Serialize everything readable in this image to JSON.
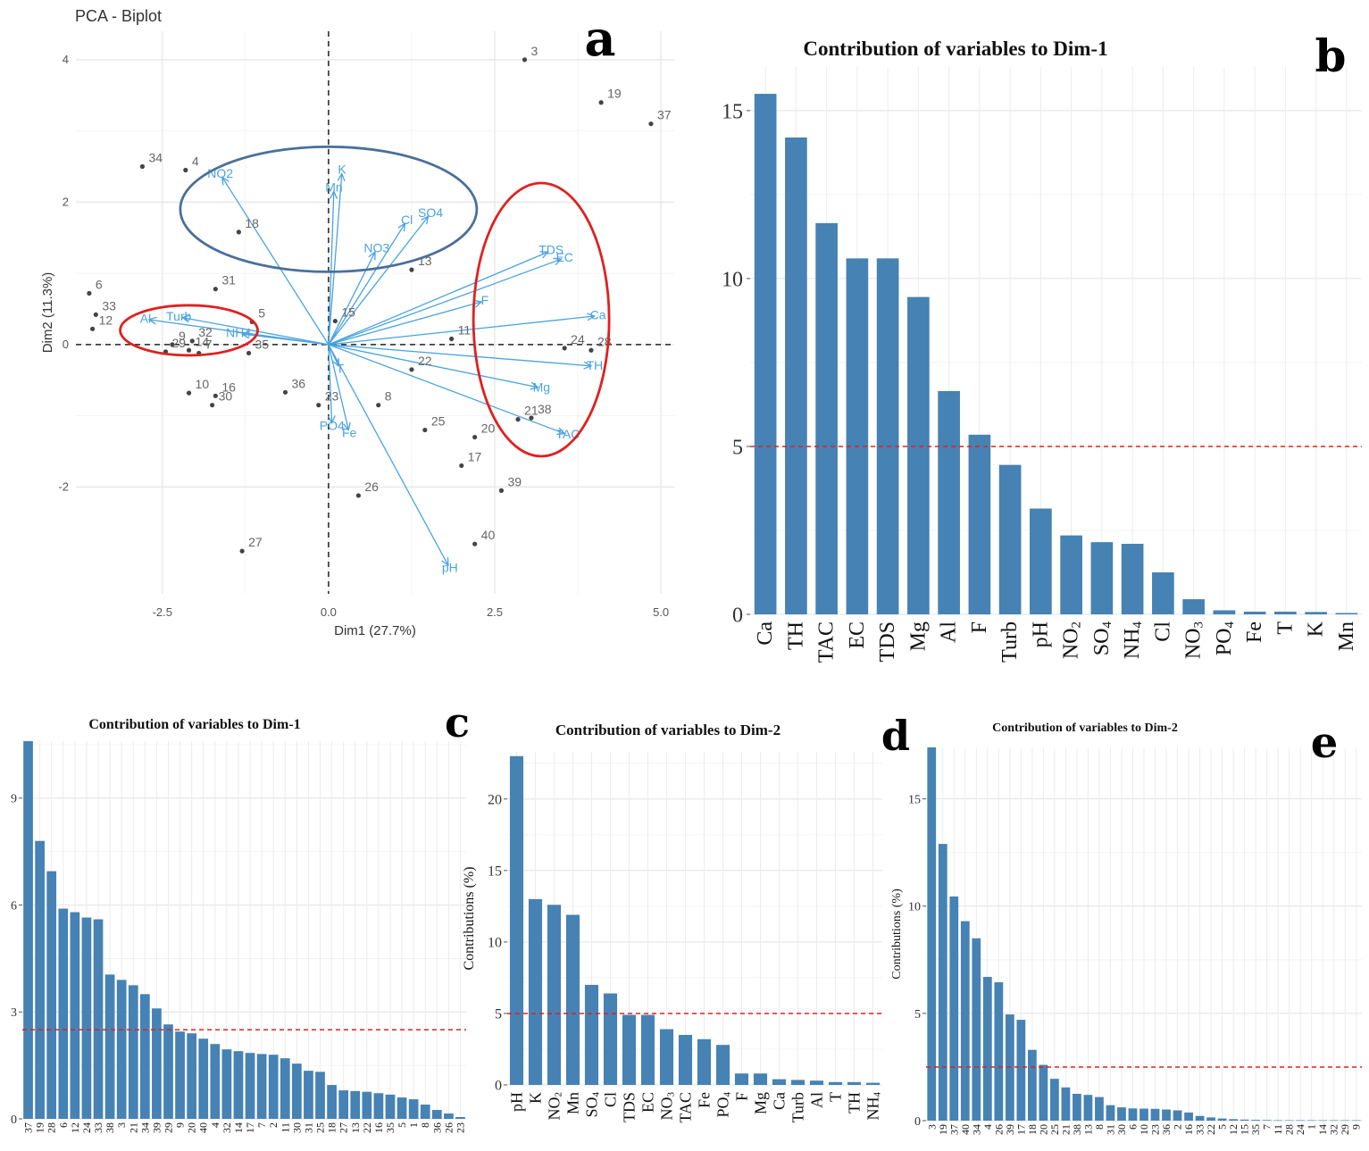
{
  "chart_data": [
    {
      "id": "a",
      "type": "scatter",
      "panel_letter": "a",
      "title": "PCA - Biplot",
      "xlabel": "Dim1 (27.7%)",
      "ylabel": "Dim2 (11.3%)",
      "xlim": [
        -3.8,
        5.2
      ],
      "ylim": [
        -3.5,
        4.4
      ],
      "xticks": [
        -2.5,
        0.0,
        2.5,
        5.0
      ],
      "xtick_labels": [
        "-2.5",
        "0.0",
        "2.5",
        "5.0"
      ],
      "yticks": [
        -2,
        0,
        2,
        4
      ],
      "ytick_labels": [
        "-2",
        "0",
        "2",
        "4"
      ],
      "point_color": "#444444",
      "arrow_color": "#4aa3df",
      "points": [
        {
          "label": "3",
          "x": 2.95,
          "y": 4.0
        },
        {
          "label": "19",
          "x": 4.1,
          "y": 3.4
        },
        {
          "label": "37",
          "x": 4.85,
          "y": 3.1
        },
        {
          "label": "34",
          "x": -2.8,
          "y": 2.5
        },
        {
          "label": "4",
          "x": -2.15,
          "y": 2.45
        },
        {
          "label": "18",
          "x": -1.35,
          "y": 1.58
        },
        {
          "label": "13",
          "x": 1.25,
          "y": 1.05
        },
        {
          "label": "31",
          "x": -1.7,
          "y": 0.78
        },
        {
          "label": "6",
          "x": -3.6,
          "y": 0.72
        },
        {
          "label": "33",
          "x": -3.5,
          "y": 0.42
        },
        {
          "label": "12",
          "x": -3.55,
          "y": 0.22
        },
        {
          "label": "15",
          "x": 0.1,
          "y": 0.33
        },
        {
          "label": "11",
          "x": 1.85,
          "y": 0.08
        },
        {
          "label": "5",
          "x": -1.15,
          "y": 0.32
        },
        {
          "label": "9",
          "x": -2.35,
          "y": 0.0
        },
        {
          "label": "32",
          "x": -2.05,
          "y": 0.05
        },
        {
          "label": "29",
          "x": -2.45,
          "y": -0.1
        },
        {
          "label": "14",
          "x": -2.1,
          "y": -0.08
        },
        {
          "label": "7",
          "x": -1.95,
          "y": -0.12
        },
        {
          "label": "24",
          "x": 3.55,
          "y": -0.05
        },
        {
          "label": "28",
          "x": 3.95,
          "y": -0.08
        },
        {
          "label": "35",
          "x": -1.2,
          "y": -0.12
        },
        {
          "label": "22",
          "x": 1.25,
          "y": -0.35
        },
        {
          "label": "36",
          "x": -0.65,
          "y": -0.67
        },
        {
          "label": "10",
          "x": -2.1,
          "y": -0.68
        },
        {
          "label": "16",
          "x": -1.7,
          "y": -0.72
        },
        {
          "label": "30",
          "x": -1.75,
          "y": -0.85
        },
        {
          "label": "23",
          "x": -0.15,
          "y": -0.85
        },
        {
          "label": "8",
          "x": 0.75,
          "y": -0.85
        },
        {
          "label": "21",
          "x": 2.85,
          "y": -1.05
        },
        {
          "label": "38",
          "x": 3.05,
          "y": -1.03
        },
        {
          "label": "25",
          "x": 1.45,
          "y": -1.2
        },
        {
          "label": "20",
          "x": 2.2,
          "y": -1.3
        },
        {
          "label": "17",
          "x": 2.0,
          "y": -1.7
        },
        {
          "label": "26",
          "x": 0.45,
          "y": -2.12
        },
        {
          "label": "39",
          "x": 2.6,
          "y": -2.05
        },
        {
          "label": "40",
          "x": 2.2,
          "y": -2.8
        },
        {
          "label": "27",
          "x": -1.3,
          "y": -2.9
        }
      ],
      "arrows": [
        {
          "label": "K",
          "x": 0.2,
          "y": 2.4
        },
        {
          "label": "Mn",
          "x": 0.08,
          "y": 2.15
        },
        {
          "label": "NO2",
          "x": -1.6,
          "y": 2.35
        },
        {
          "label": "SO4",
          "x": 1.5,
          "y": 1.8
        },
        {
          "label": "Cl",
          "x": 1.15,
          "y": 1.7
        },
        {
          "label": "NO3",
          "x": 0.7,
          "y": 1.3
        },
        {
          "label": "TDS",
          "x": 3.3,
          "y": 1.3
        },
        {
          "label": "EC",
          "x": 3.5,
          "y": 1.2
        },
        {
          "label": "F",
          "x": 2.3,
          "y": 0.6
        },
        {
          "label": "Ca",
          "x": 4.0,
          "y": 0.4
        },
        {
          "label": "TH",
          "x": 3.95,
          "y": -0.3
        },
        {
          "label": "Mg",
          "x": 3.15,
          "y": -0.6
        },
        {
          "label": "TAC",
          "x": 3.55,
          "y": -1.25
        },
        {
          "label": "Fe",
          "x": 0.3,
          "y": -1.2
        },
        {
          "label": "PO4",
          "x": 0.05,
          "y": -1.1
        },
        {
          "label": "pH",
          "x": 1.8,
          "y": -3.1
        },
        {
          "label": "Turb",
          "x": -2.2,
          "y": 0.38
        },
        {
          "label": "Al",
          "x": -2.7,
          "y": 0.35
        },
        {
          "label": "NH4",
          "x": -1.3,
          "y": 0.15
        },
        {
          "label": "T",
          "x": 0.15,
          "y": -0.3
        }
      ],
      "ellipses": [
        {
          "color": "#4a6f9c"
        },
        {
          "color": "#e02020"
        },
        {
          "color": "#e02020"
        }
      ]
    },
    {
      "id": "b",
      "type": "bar",
      "panel_letter": "b",
      "title": "Contribution of variables to Dim-1",
      "ylabel": "",
      "ylim": [
        0,
        16.3
      ],
      "yticks": [
        0,
        5,
        10,
        15
      ],
      "ytick_labels": [
        "0",
        "5",
        "10",
        "15"
      ],
      "reference_line": 5,
      "bar_color": "#4682b4",
      "ref_color": "#e02020",
      "categories": [
        {
          "main": "Ca",
          "sub": ""
        },
        {
          "main": "TH",
          "sub": ""
        },
        {
          "main": "TAC",
          "sub": ""
        },
        {
          "main": "EC",
          "sub": ""
        },
        {
          "main": "TDS",
          "sub": ""
        },
        {
          "main": "Mg",
          "sub": ""
        },
        {
          "main": "Al",
          "sub": ""
        },
        {
          "main": "F",
          "sub": ""
        },
        {
          "main": "Turb",
          "sub": ""
        },
        {
          "main": "pH",
          "sub": ""
        },
        {
          "main": "NO",
          "sub": "2"
        },
        {
          "main": "SO",
          "sub": "4"
        },
        {
          "main": "NH",
          "sub": "4"
        },
        {
          "main": "Cl",
          "sub": ""
        },
        {
          "main": "NO",
          "sub": "3"
        },
        {
          "main": "PO",
          "sub": "4"
        },
        {
          "main": "Fe",
          "sub": ""
        },
        {
          "main": "T",
          "sub": ""
        },
        {
          "main": "K",
          "sub": ""
        },
        {
          "main": "Mn",
          "sub": ""
        }
      ],
      "values": [
        15.5,
        14.2,
        11.65,
        10.6,
        10.6,
        9.45,
        6.65,
        5.35,
        4.45,
        3.15,
        2.35,
        2.15,
        2.1,
        1.25,
        0.45,
        0.12,
        0.08,
        0.08,
        0.07,
        0.04
      ]
    },
    {
      "id": "c",
      "type": "bar",
      "panel_letter": "c",
      "title": "Contribution of variables to Dim-1",
      "ylabel": "",
      "ylim": [
        0,
        10.6
      ],
      "yticks": [
        0,
        3,
        6,
        9
      ],
      "ytick_labels": [
        "0",
        "3",
        "6",
        "9"
      ],
      "reference_line": 2.5,
      "bar_color": "#4682b4",
      "ref_color": "#e02020",
      "categories": [
        "37",
        "19",
        "28",
        "6",
        "12",
        "24",
        "33",
        "38",
        "3",
        "21",
        "34",
        "39",
        "29",
        "9",
        "20",
        "40",
        "4",
        "32",
        "14",
        "17",
        "7",
        "2",
        "11",
        "30",
        "31",
        "25",
        "18",
        "27",
        "13",
        "22",
        "16",
        "35",
        "5",
        "1",
        "8",
        "36",
        "26",
        "23"
      ],
      "values": [
        10.6,
        7.8,
        6.95,
        5.9,
        5.8,
        5.65,
        5.6,
        4.05,
        3.9,
        3.75,
        3.5,
        3.1,
        2.65,
        2.45,
        2.4,
        2.25,
        2.1,
        1.95,
        1.9,
        1.85,
        1.82,
        1.8,
        1.7,
        1.55,
        1.35,
        1.32,
        0.95,
        0.8,
        0.78,
        0.76,
        0.72,
        0.68,
        0.6,
        0.55,
        0.4,
        0.25,
        0.15,
        0.05
      ]
    },
    {
      "id": "d",
      "type": "bar",
      "panel_letter": "d",
      "title": "Contribution of variables to Dim-2",
      "ylabel": "Contributions (%)",
      "ylim": [
        0,
        23.3
      ],
      "yticks": [
        0,
        5,
        10,
        15,
        20
      ],
      "ytick_labels": [
        "0",
        "5",
        "10",
        "15",
        "20"
      ],
      "reference_line": 5,
      "bar_color": "#4682b4",
      "ref_color": "#e02020",
      "categories": [
        {
          "main": "pH",
          "sub": ""
        },
        {
          "main": "K",
          "sub": ""
        },
        {
          "main": "NO",
          "sub": "2"
        },
        {
          "main": "Mn",
          "sub": ""
        },
        {
          "main": "SO",
          "sub": "4"
        },
        {
          "main": "Cl",
          "sub": ""
        },
        {
          "main": "TDS",
          "sub": ""
        },
        {
          "main": "EC",
          "sub": ""
        },
        {
          "main": "NO",
          "sub": "3"
        },
        {
          "main": "TAC",
          "sub": ""
        },
        {
          "main": "Fe",
          "sub": ""
        },
        {
          "main": "PO",
          "sub": "4"
        },
        {
          "main": "F",
          "sub": ""
        },
        {
          "main": "Mg",
          "sub": ""
        },
        {
          "main": "Ca",
          "sub": ""
        },
        {
          "main": "Turb",
          "sub": ""
        },
        {
          "main": "Al",
          "sub": ""
        },
        {
          "main": "T",
          "sub": ""
        },
        {
          "main": "TH",
          "sub": ""
        },
        {
          "main": "NH",
          "sub": "4"
        }
      ],
      "values": [
        23.0,
        13.0,
        12.6,
        11.9,
        7.0,
        6.4,
        4.9,
        4.9,
        3.9,
        3.5,
        3.2,
        2.8,
        0.8,
        0.8,
        0.4,
        0.35,
        0.3,
        0.2,
        0.2,
        0.15
      ]
    },
    {
      "id": "e",
      "type": "bar",
      "panel_letter": "e",
      "title": "Contribution of variables to Dim-2",
      "ylabel": "Contributions (%)",
      "ylim": [
        0,
        17.4
      ],
      "yticks": [
        0,
        5,
        10,
        15
      ],
      "ytick_labels": [
        "0",
        "5",
        "10",
        "15"
      ],
      "reference_line": 2.5,
      "bar_color": "#4682b4",
      "ref_color": "#e02020",
      "categories": [
        "3",
        "19",
        "37",
        "40",
        "34",
        "4",
        "26",
        "39",
        "17",
        "18",
        "20",
        "25",
        "21",
        "38",
        "13",
        "8",
        "31",
        "30",
        "6",
        "10",
        "23",
        "36",
        "2",
        "16",
        "33",
        "22",
        "5",
        "12",
        "15",
        "35",
        "7",
        "11",
        "28",
        "24",
        "1",
        "14",
        "32",
        "29",
        "9"
      ],
      "values": [
        17.4,
        12.9,
        10.45,
        9.3,
        8.5,
        6.7,
        6.45,
        4.95,
        4.7,
        3.3,
        2.6,
        1.95,
        1.55,
        1.25,
        1.2,
        1.1,
        0.72,
        0.62,
        0.57,
        0.56,
        0.55,
        0.52,
        0.48,
        0.38,
        0.22,
        0.15,
        0.1,
        0.07,
        0.05,
        0.04,
        0.03,
        0.02,
        0.02,
        0.02,
        0.02,
        0.02,
        0.02,
        0.02,
        0.02
      ]
    }
  ]
}
